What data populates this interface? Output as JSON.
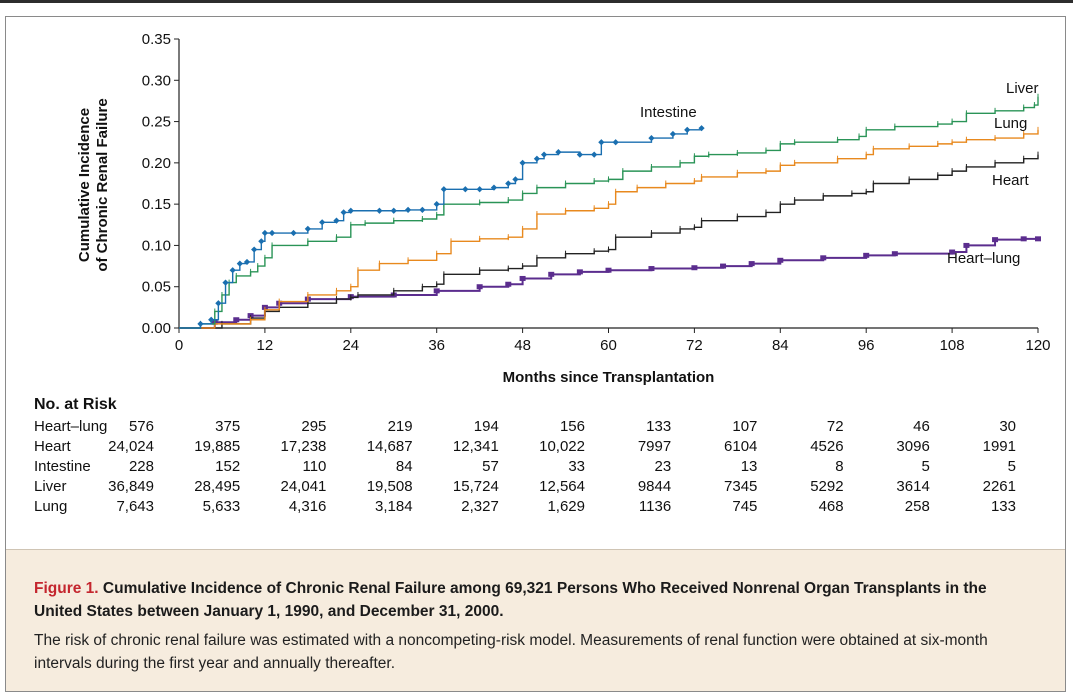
{
  "chart_data": {
    "type": "line",
    "xlabel": "Months since Transplantation",
    "ylabel_lines": [
      "Cumulative Incidence",
      "of Chronic Renal Failure"
    ],
    "xlim": [
      0,
      120
    ],
    "ylim": [
      0,
      0.35
    ],
    "xticks": [
      0,
      12,
      24,
      36,
      48,
      60,
      72,
      84,
      96,
      108,
      120
    ],
    "xtick_labels": [
      "0",
      "12",
      "24",
      "36",
      "48",
      "60",
      "72",
      "84",
      "96",
      "108",
      "120"
    ],
    "yticks": [
      0,
      0.05,
      0.1,
      0.15,
      0.2,
      0.25,
      0.3,
      0.35
    ],
    "ytick_labels": [
      "0.00",
      "0.05",
      "0.10",
      "0.15",
      "0.20",
      "0.25",
      "0.30",
      "0.35"
    ],
    "grid": false,
    "series": [
      {
        "name": "Intestine",
        "color": "#1a6fb0",
        "x": [
          0,
          3,
          4.5,
          5.5,
          6.5,
          7.5,
          8.5,
          9.5,
          10.5,
          11.5,
          12,
          13,
          16,
          18,
          20,
          22,
          23,
          24,
          28,
          30,
          32,
          34,
          36,
          37,
          40,
          42,
          44,
          46,
          47,
          48,
          50,
          51,
          53,
          56,
          58,
          59,
          61,
          66,
          69,
          71,
          73
        ],
        "y": [
          0.0,
          0.005,
          0.01,
          0.03,
          0.055,
          0.07,
          0.078,
          0.08,
          0.095,
          0.105,
          0.115,
          0.115,
          0.115,
          0.12,
          0.128,
          0.13,
          0.14,
          0.142,
          0.142,
          0.142,
          0.143,
          0.143,
          0.15,
          0.168,
          0.168,
          0.168,
          0.17,
          0.175,
          0.18,
          0.2,
          0.205,
          0.21,
          0.213,
          0.21,
          0.21,
          0.225,
          0.225,
          0.23,
          0.235,
          0.24,
          0.242
        ]
      },
      {
        "name": "Liver",
        "color": "#2a9457",
        "x": [
          0,
          3,
          5,
          6,
          7,
          8,
          10,
          11,
          12,
          13,
          18,
          22,
          24,
          26,
          30,
          34,
          36,
          37,
          42,
          46,
          48,
          50,
          54,
          58,
          60,
          62,
          66,
          70,
          72,
          74,
          78,
          82,
          84,
          86,
          92,
          95,
          96,
          100,
          106,
          108,
          110,
          114,
          118,
          119.5,
          120
        ],
        "y": [
          0.0,
          0.005,
          0.02,
          0.04,
          0.055,
          0.063,
          0.068,
          0.075,
          0.085,
          0.1,
          0.105,
          0.11,
          0.125,
          0.127,
          0.13,
          0.132,
          0.137,
          0.15,
          0.152,
          0.155,
          0.163,
          0.17,
          0.175,
          0.178,
          0.18,
          0.19,
          0.195,
          0.2,
          0.208,
          0.21,
          0.212,
          0.215,
          0.223,
          0.225,
          0.228,
          0.232,
          0.24,
          0.244,
          0.247,
          0.25,
          0.26,
          0.263,
          0.267,
          0.27,
          0.28
        ]
      },
      {
        "name": "Lung",
        "color": "#e8891e",
        "x": [
          0,
          5,
          10,
          12,
          14,
          18,
          22,
          24,
          25,
          28,
          32,
          36,
          38,
          42,
          46,
          48,
          50,
          54,
          58,
          60,
          61,
          64,
          68,
          72,
          73,
          78,
          82,
          84,
          86,
          92,
          96,
          97,
          102,
          106,
          108,
          110,
          114,
          118,
          120
        ],
        "y": [
          0.0,
          0.005,
          0.01,
          0.022,
          0.032,
          0.04,
          0.045,
          0.05,
          0.07,
          0.078,
          0.082,
          0.09,
          0.105,
          0.108,
          0.11,
          0.12,
          0.138,
          0.142,
          0.145,
          0.15,
          0.165,
          0.17,
          0.175,
          0.178,
          0.183,
          0.188,
          0.19,
          0.197,
          0.2,
          0.205,
          0.21,
          0.217,
          0.22,
          0.223,
          0.225,
          0.228,
          0.23,
          0.235,
          0.24
        ]
      },
      {
        "name": "Heart",
        "color": "#222222",
        "x": [
          0,
          6,
          10,
          12,
          14,
          18,
          22,
          24,
          25,
          30,
          34,
          36,
          37,
          42,
          46,
          48,
          50,
          54,
          58,
          60,
          61,
          66,
          70,
          72,
          73,
          78,
          82,
          84,
          86,
          90,
          94,
          96,
          97,
          102,
          106,
          108,
          110,
          114,
          118,
          120
        ],
        "y": [
          0.0,
          0.005,
          0.012,
          0.02,
          0.025,
          0.03,
          0.035,
          0.037,
          0.04,
          0.045,
          0.05,
          0.053,
          0.065,
          0.07,
          0.072,
          0.075,
          0.085,
          0.09,
          0.093,
          0.095,
          0.11,
          0.115,
          0.12,
          0.122,
          0.13,
          0.135,
          0.14,
          0.15,
          0.155,
          0.16,
          0.163,
          0.165,
          0.175,
          0.18,
          0.185,
          0.19,
          0.195,
          0.2,
          0.205,
          0.21
        ]
      },
      {
        "name": "Heart–lung",
        "color": "#5b2d8e",
        "x": [
          0,
          5,
          8,
          10,
          12,
          14,
          18,
          24,
          30,
          36,
          42,
          46,
          48,
          52,
          56,
          60,
          66,
          72,
          76,
          80,
          84,
          90,
          96,
          100,
          108,
          110,
          114,
          118,
          120
        ],
        "y": [
          0.0,
          0.007,
          0.01,
          0.015,
          0.025,
          0.03,
          0.035,
          0.038,
          0.04,
          0.045,
          0.05,
          0.053,
          0.06,
          0.065,
          0.068,
          0.07,
          0.072,
          0.073,
          0.075,
          0.078,
          0.082,
          0.085,
          0.088,
          0.09,
          0.092,
          0.1,
          0.107,
          0.108,
          0.108
        ]
      }
    ],
    "series_labels": [
      "Liver",
      "Intestine",
      "Lung",
      "Heart",
      "Heart–lung"
    ]
  },
  "risk_table": {
    "heading": "No. at Risk",
    "rows": [
      {
        "label": "Heart–lung",
        "values": [
          "576",
          "375",
          "295",
          "219",
          "194",
          "156",
          "133",
          "107",
          "72",
          "46",
          "30"
        ]
      },
      {
        "label": "Heart",
        "values": [
          "24,024",
          "19,885",
          "17,238",
          "14,687",
          "12,341",
          "10,022",
          "7997",
          "6104",
          "4526",
          "3096",
          "1991"
        ]
      },
      {
        "label": "Intestine",
        "values": [
          "228",
          "152",
          "110",
          "84",
          "57",
          "33",
          "23",
          "13",
          "8",
          "5",
          "5"
        ]
      },
      {
        "label": "Liver",
        "values": [
          "36,849",
          "28,495",
          "24,041",
          "19,508",
          "15,724",
          "12,564",
          "9844",
          "7345",
          "5292",
          "3614",
          "2261"
        ]
      },
      {
        "label": "Lung",
        "values": [
          "7,643",
          "5,633",
          "4,316",
          "3,184",
          "2,327",
          "1,629",
          "1136",
          "745",
          "468",
          "258",
          "133"
        ]
      }
    ]
  },
  "caption": {
    "figure_number": "Figure 1.",
    "title": "Cumulative Incidence of Chronic Renal Failure among 69,321 Persons Who Received Nonrenal Organ Transplants in the United States between January 1, 1990, and December 31, 2000.",
    "description": "The risk of chronic renal failure was estimated with a noncompeting-risk model. Measurements of renal function were obtained at six-month intervals during the first year and annually thereafter."
  },
  "colors": {
    "caption_background": "#f6ecde",
    "figure_number": "#c4262e"
  }
}
